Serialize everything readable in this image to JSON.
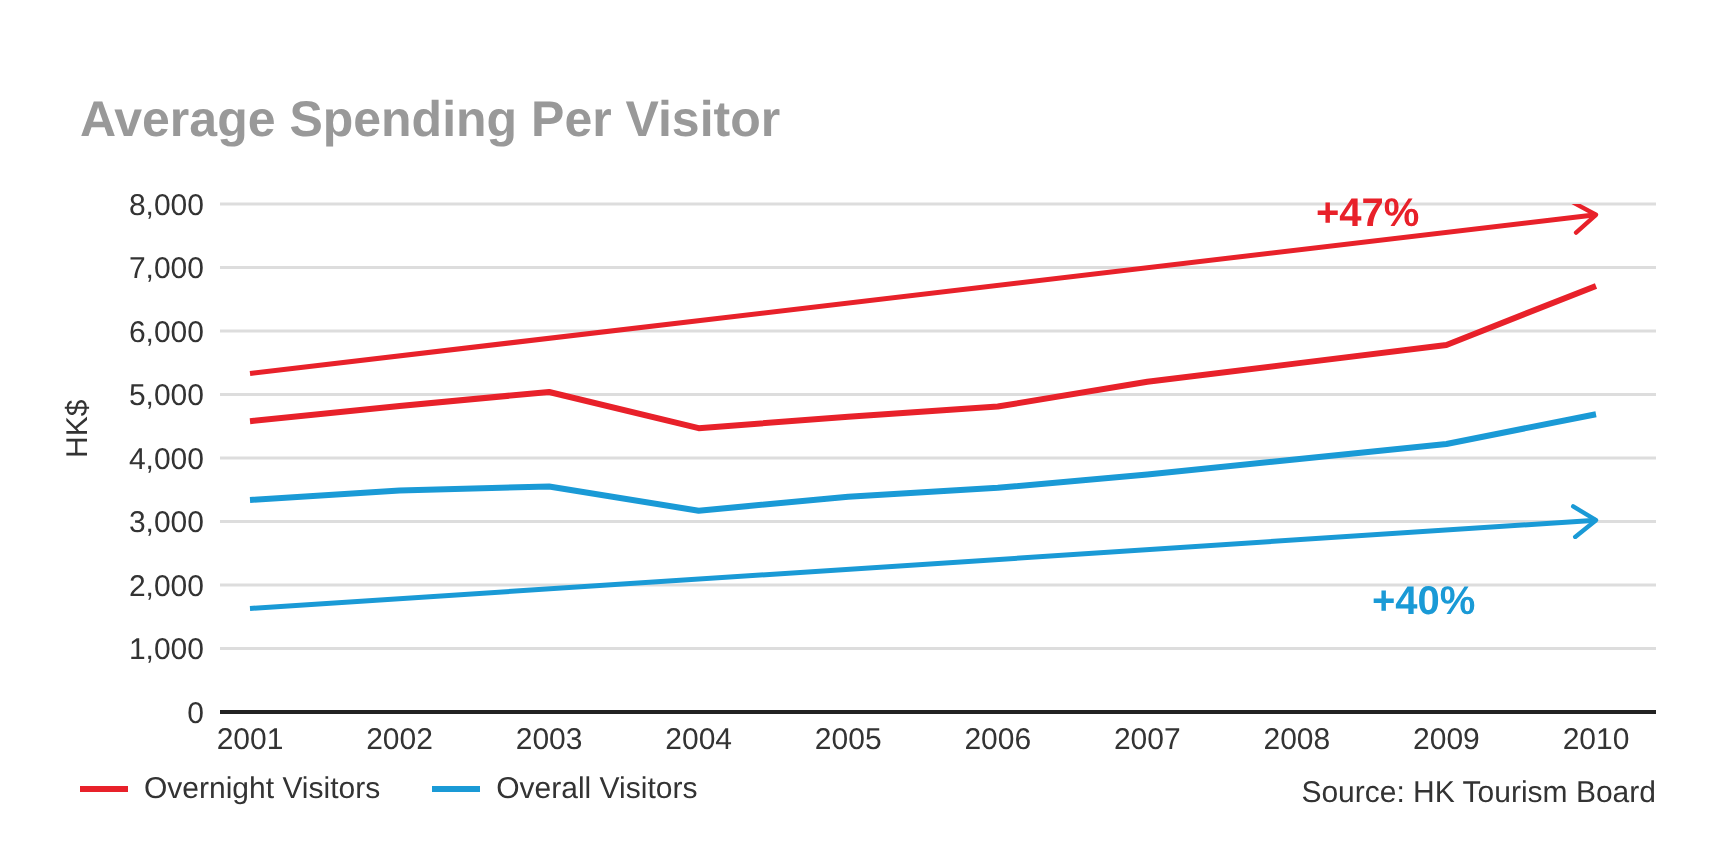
{
  "chart_data": {
    "type": "line",
    "title": "Average Spending Per Visitor",
    "ylabel": "HK$",
    "categories": [
      "2001",
      "2002",
      "2003",
      "2004",
      "2005",
      "2006",
      "2007",
      "2008",
      "2009",
      "2010"
    ],
    "series": [
      {
        "name": "Overnight Visitors",
        "color": "#e8212a",
        "values": [
          4580,
          4820,
          5040,
          4470,
          4650,
          4810,
          5200,
          5490,
          5780,
          6710
        ]
      },
      {
        "name": "Overall Visitors",
        "color": "#1a9ad6",
        "values": [
          3340,
          3490,
          3550,
          3170,
          3390,
          3530,
          3740,
          3980,
          4220,
          4690
        ]
      },
      {
        "color": "#e8212a",
        "values": [
          5330,
          null,
          null,
          null,
          null,
          null,
          null,
          null,
          null,
          7830
        ]
      },
      {
        "color": "#1a9ad6",
        "values": [
          1630,
          null,
          null,
          null,
          null,
          null,
          null,
          null,
          null,
          3020
        ]
      }
    ],
    "ylim": [
      0,
      8000
    ],
    "yticks": [
      {
        "value": 0,
        "label": "0"
      },
      {
        "value": 1000,
        "label": "1,000"
      },
      {
        "value": 2000,
        "label": "2,000"
      },
      {
        "value": 3000,
        "label": "3,000"
      },
      {
        "value": 4000,
        "label": "4,000"
      },
      {
        "value": 5000,
        "label": "5,000"
      },
      {
        "value": 6000,
        "label": "6,000"
      },
      {
        "value": 7000,
        "label": "7,000"
      },
      {
        "value": 8000,
        "label": "8,000"
      }
    ],
    "grid": "y",
    "legend": "bottom left",
    "marker": "none",
    "line_style": "solid",
    "annotations": [
      "+47%",
      "+40%",
      "Source: HK Tourism Board"
    ]
  }
}
